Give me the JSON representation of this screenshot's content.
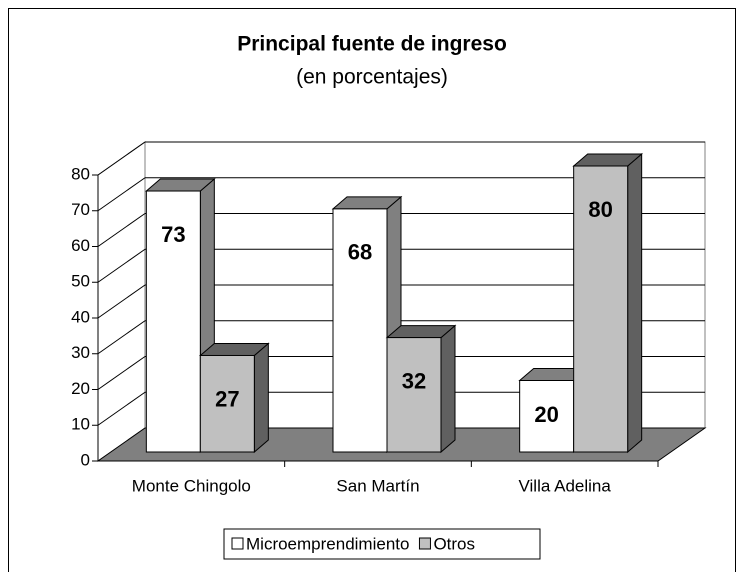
{
  "chart_data": {
    "type": "bar3d",
    "title": "Principal fuente de ingreso",
    "subtitle": "(en porcentajes)",
    "categories": [
      "Monte Chingolo",
      "San Martín",
      "Villa Adelina"
    ],
    "series": [
      {
        "name": "Microemprendimiento",
        "color": "#ffffff",
        "values": [
          73,
          68,
          20
        ]
      },
      {
        "name": "Otros",
        "color": "#c0c0c0",
        "values": [
          27,
          32,
          80
        ]
      }
    ],
    "ylim": [
      0,
      80
    ],
    "yticks": [
      0,
      10,
      20,
      30,
      40,
      50,
      60,
      70,
      80
    ],
    "grid": true,
    "legend": "bottom"
  }
}
